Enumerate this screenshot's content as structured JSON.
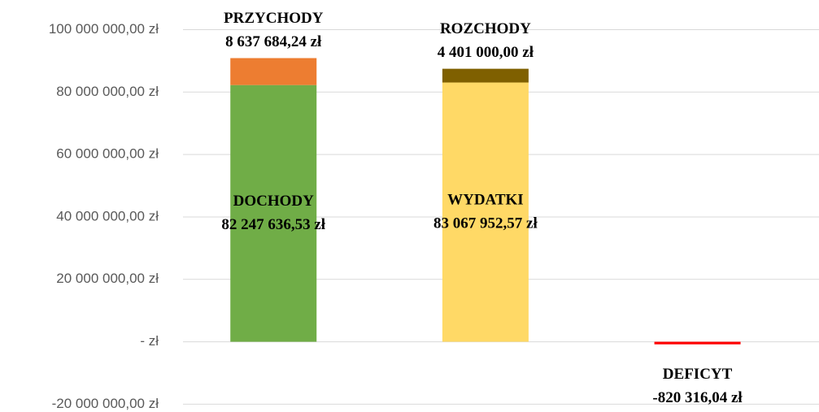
{
  "chart_data": {
    "type": "stacked_bar",
    "categories": [
      null,
      null,
      null
    ],
    "series": [
      {
        "name": "DOCHODY",
        "color": "#70ad47",
        "values": [
          82247636.53,
          null,
          null
        ],
        "value_labels": [
          "82 247 636,53 zł",
          null,
          null
        ]
      },
      {
        "name": "PRZYCHODY",
        "color": "#ed7d31",
        "values": [
          8637684.24,
          null,
          null
        ],
        "value_labels": [
          "8 637 684,24 zł",
          null,
          null
        ]
      },
      {
        "name": "WYDATKI",
        "color": "#ffd966",
        "values": [
          null,
          83067952.57,
          null
        ],
        "value_labels": [
          null,
          "83 067 952,57 zł",
          null
        ]
      },
      {
        "name": "ROZCHODY",
        "color": "#7f6000",
        "values": [
          null,
          4401000,
          null
        ],
        "value_labels": [
          null,
          "4 401 000,00 zł",
          null
        ]
      },
      {
        "name": "DEFICYT",
        "color": "#ff0000",
        "values": [
          null,
          null,
          -820316.04
        ],
        "value_labels": [
          null,
          null,
          "-820 316,04 zł"
        ]
      }
    ],
    "ylim": [
      -22500000,
      109500000
    ],
    "yticks": [
      {
        "value": -20000000,
        "label": "-20 000 000,00 zł"
      },
      {
        "value": 0,
        "label": "-  zł"
      },
      {
        "value": 20000000,
        "label": "20 000 000,00 zł"
      },
      {
        "value": 40000000,
        "label": "40 000 000,00 zł"
      },
      {
        "value": 60000000,
        "label": "60 000 000,00 zł"
      },
      {
        "value": 80000000,
        "label": "80 000 000,00 zł"
      },
      {
        "value": 100000000,
        "label": "100 000 000,00 zł"
      }
    ],
    "grid": true
  }
}
